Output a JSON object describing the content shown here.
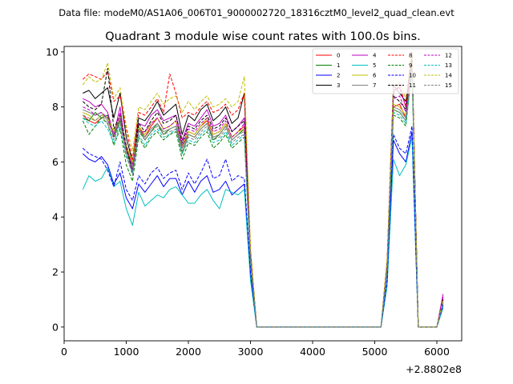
{
  "chart_data": {
    "type": "line",
    "suptitle": "Data file: modeM0/AS1A06_006T01_9000002720_18316cztM0_level2_quad_clean.evt",
    "title": "Quadrant 3 module wise count rates with 100.0s bins.",
    "xlabel": "",
    "ylabel": "",
    "x_offset_label": "+2.8802e8",
    "xlim": [
      0,
      6400
    ],
    "ylim": [
      -0.5,
      10.2
    ],
    "xticks": [
      0,
      1000,
      2000,
      3000,
      4000,
      5000,
      6000
    ],
    "yticks": [
      0,
      2,
      4,
      6,
      8,
      10
    ],
    "legend_position": "top-right",
    "x": [
      300,
      400,
      500,
      600,
      700,
      800,
      900,
      1000,
      1100,
      1200,
      1300,
      1400,
      1500,
      1600,
      1700,
      1800,
      1900,
      2000,
      2100,
      2200,
      2300,
      2400,
      2500,
      2600,
      2700,
      2800,
      2900,
      3000,
      3100,
      3200,
      3300,
      3400,
      3500,
      3600,
      3700,
      3800,
      3900,
      4000,
      4100,
      4200,
      4300,
      4400,
      4500,
      4600,
      4700,
      4800,
      4900,
      5000,
      5100,
      5200,
      5300,
      5400,
      5500,
      5600,
      5700,
      5800,
      5900,
      6000,
      6100
    ],
    "series": [
      {
        "name": "0",
        "color": "#ff0000",
        "dash": "solid",
        "values": [
          7.7,
          7.5,
          7.4,
          7.6,
          7.7,
          7.0,
          7.6,
          6.5,
          5.9,
          7.3,
          6.9,
          7.3,
          7.6,
          7.2,
          7.3,
          7.5,
          6.5,
          7.1,
          7.0,
          7.3,
          7.5,
          7.0,
          7.1,
          7.4,
          6.9,
          7.1,
          7.3,
          2.5,
          0.0,
          0.0,
          0.0,
          0.0,
          0.0,
          0.0,
          0.0,
          0.0,
          0.0,
          0.0,
          0.0,
          0.0,
          0.0,
          0.0,
          0.0,
          0.0,
          0.0,
          0.0,
          0.0,
          0.0,
          0.0,
          2.2,
          8.0,
          8.1,
          7.6,
          9.9,
          0.0,
          0.0,
          0.0,
          0.0,
          1.1
        ]
      },
      {
        "name": "1",
        "color": "#008000",
        "dash": "solid",
        "values": [
          7.6,
          7.5,
          7.8,
          7.6,
          7.7,
          6.9,
          7.5,
          6.4,
          5.7,
          7.2,
          6.8,
          7.1,
          7.4,
          7.0,
          7.2,
          7.3,
          6.3,
          7.0,
          6.9,
          7.2,
          7.4,
          6.8,
          7.0,
          7.3,
          6.8,
          7.0,
          7.2,
          2.4,
          0.0,
          0.0,
          0.0,
          0.0,
          0.0,
          0.0,
          0.0,
          0.0,
          0.0,
          0.0,
          0.0,
          0.0,
          0.0,
          0.0,
          0.0,
          0.0,
          0.0,
          0.0,
          0.0,
          0.0,
          0.0,
          2.1,
          7.9,
          7.8,
          7.5,
          9.7,
          0.0,
          0.0,
          0.0,
          0.0,
          0.9
        ]
      },
      {
        "name": "2",
        "color": "#0000ff",
        "dash": "solid",
        "values": [
          6.3,
          6.1,
          6.0,
          6.2,
          5.9,
          5.2,
          5.6,
          4.7,
          4.3,
          5.2,
          4.9,
          5.2,
          5.5,
          5.1,
          5.4,
          5.4,
          4.8,
          5.3,
          4.9,
          5.3,
          5.5,
          4.9,
          5.0,
          5.3,
          4.8,
          5.0,
          5.2,
          1.9,
          0.0,
          0.0,
          0.0,
          0.0,
          0.0,
          0.0,
          0.0,
          0.0,
          0.0,
          0.0,
          0.0,
          0.0,
          0.0,
          0.0,
          0.0,
          0.0,
          0.0,
          0.0,
          0.0,
          0.0,
          0.0,
          1.6,
          6.8,
          6.3,
          6.0,
          7.1,
          0.0,
          0.0,
          0.0,
          0.0,
          0.8
        ]
      },
      {
        "name": "3",
        "color": "#000000",
        "dash": "solid",
        "values": [
          8.5,
          8.6,
          8.3,
          8.5,
          8.7,
          7.6,
          8.5,
          6.9,
          6.0,
          7.6,
          7.5,
          7.8,
          8.2,
          7.7,
          7.9,
          8.1,
          7.0,
          7.7,
          7.5,
          7.9,
          8.1,
          7.5,
          7.7,
          8.0,
          7.4,
          7.6,
          8.5,
          2.7,
          0.0,
          0.0,
          0.0,
          0.0,
          0.0,
          0.0,
          0.0,
          0.0,
          0.0,
          0.0,
          0.0,
          0.0,
          0.0,
          0.0,
          0.0,
          0.0,
          0.0,
          0.0,
          0.0,
          0.0,
          0.0,
          2.4,
          8.8,
          8.5,
          8.2,
          10.0,
          0.0,
          0.0,
          0.0,
          0.0,
          1.0
        ]
      },
      {
        "name": "4",
        "color": "#bf00bf",
        "dash": "solid",
        "values": [
          8.3,
          8.2,
          8.0,
          8.1,
          7.8,
          7.0,
          8.0,
          6.4,
          5.9,
          7.4,
          7.3,
          7.7,
          7.9,
          7.5,
          7.6,
          7.7,
          6.8,
          7.4,
          7.3,
          7.6,
          7.9,
          7.3,
          7.4,
          7.7,
          7.1,
          7.3,
          7.6,
          2.6,
          0.0,
          0.0,
          0.0,
          0.0,
          0.0,
          0.0,
          0.0,
          0.0,
          0.0,
          0.0,
          0.0,
          0.0,
          0.0,
          0.0,
          0.0,
          0.0,
          0.0,
          0.0,
          0.0,
          0.0,
          0.0,
          2.3,
          8.6,
          8.7,
          8.0,
          9.8,
          0.0,
          0.0,
          0.0,
          0.0,
          1.2
        ]
      },
      {
        "name": "5",
        "color": "#00bfbf",
        "dash": "solid",
        "values": [
          5.0,
          5.5,
          5.3,
          5.4,
          5.8,
          5.1,
          5.3,
          4.3,
          3.7,
          4.9,
          4.4,
          4.6,
          4.8,
          4.7,
          5.0,
          5.1,
          4.8,
          4.5,
          4.5,
          4.8,
          5.0,
          4.6,
          4.3,
          5.0,
          4.9,
          4.8,
          5.0,
          1.7,
          0.0,
          0.0,
          0.0,
          0.0,
          0.0,
          0.0,
          0.0,
          0.0,
          0.0,
          0.0,
          0.0,
          0.0,
          0.0,
          0.0,
          0.0,
          0.0,
          0.0,
          0.0,
          0.0,
          0.0,
          0.0,
          1.5,
          6.1,
          5.5,
          5.9,
          6.9,
          0.0,
          0.0,
          0.0,
          0.0,
          0.7
        ]
      },
      {
        "name": "6",
        "color": "#bfbf00",
        "dash": "solid",
        "values": [
          7.8,
          7.7,
          7.5,
          7.7,
          7.6,
          7.1,
          7.7,
          6.6,
          6.0,
          7.3,
          7.0,
          7.4,
          7.6,
          7.2,
          7.3,
          7.5,
          6.6,
          7.1,
          7.0,
          7.3,
          7.6,
          7.0,
          7.1,
          7.4,
          6.9,
          7.1,
          7.2,
          2.5,
          0.0,
          0.0,
          0.0,
          0.0,
          0.0,
          0.0,
          0.0,
          0.0,
          0.0,
          0.0,
          0.0,
          0.0,
          0.0,
          0.0,
          0.0,
          0.0,
          0.0,
          0.0,
          0.0,
          0.0,
          0.0,
          2.2,
          8.1,
          8.0,
          7.7,
          9.6,
          0.0,
          0.0,
          0.0,
          0.0,
          1.0
        ]
      },
      {
        "name": "7",
        "color": "#808080",
        "dash": "solid",
        "values": [
          7.9,
          7.8,
          7.7,
          7.8,
          7.5,
          7.0,
          7.6,
          6.4,
          5.8,
          7.2,
          6.9,
          7.2,
          7.4,
          7.1,
          7.2,
          7.3,
          6.5,
          7.0,
          6.9,
          7.2,
          7.4,
          6.9,
          7.0,
          7.3,
          6.8,
          7.0,
          7.1,
          2.5,
          0.0,
          0.0,
          0.0,
          0.0,
          0.0,
          0.0,
          0.0,
          0.0,
          0.0,
          0.0,
          0.0,
          0.0,
          0.0,
          0.0,
          0.0,
          0.0,
          0.0,
          0.0,
          0.0,
          0.0,
          0.0,
          2.2,
          8.0,
          7.9,
          7.6,
          9.5,
          0.0,
          0.0,
          0.0,
          0.0,
          0.9
        ]
      },
      {
        "name": "8",
        "color": "#ff0000",
        "dash": "dashed",
        "values": [
          9.0,
          9.2,
          9.1,
          9.0,
          9.3,
          8.2,
          8.4,
          7.2,
          6.1,
          7.8,
          7.7,
          8.0,
          8.3,
          7.8,
          9.2,
          8.5,
          7.6,
          7.8,
          7.7,
          8.0,
          8.2,
          7.8,
          7.9,
          8.1,
          7.7,
          7.9,
          8.5,
          2.8,
          0.0,
          0.0,
          0.0,
          0.0,
          0.0,
          0.0,
          0.0,
          0.0,
          0.0,
          0.0,
          0.0,
          0.0,
          0.0,
          0.0,
          0.0,
          0.0,
          0.0,
          0.0,
          0.0,
          0.0,
          0.0,
          2.4,
          8.5,
          8.8,
          8.0,
          9.9,
          0.0,
          0.0,
          0.0,
          0.0,
          1.0
        ]
      },
      {
        "name": "9",
        "color": "#008000",
        "dash": "dashed",
        "values": [
          7.5,
          7.0,
          7.3,
          7.6,
          7.4,
          6.6,
          7.2,
          5.9,
          5.3,
          6.9,
          6.5,
          6.9,
          7.1,
          6.8,
          7.0,
          7.1,
          6.1,
          6.7,
          6.6,
          6.9,
          7.1,
          6.5,
          6.7,
          7.0,
          6.5,
          6.7,
          6.9,
          2.3,
          0.0,
          0.0,
          0.0,
          0.0,
          0.0,
          0.0,
          0.0,
          0.0,
          0.0,
          0.0,
          0.0,
          0.0,
          0.0,
          0.0,
          0.0,
          0.0,
          0.0,
          0.0,
          0.0,
          0.0,
          0.0,
          2.0,
          7.7,
          7.6,
          7.3,
          9.4,
          0.0,
          0.0,
          0.0,
          0.0,
          0.9
        ]
      },
      {
        "name": "10",
        "color": "#0000ff",
        "dash": "dashed",
        "values": [
          6.5,
          6.3,
          6.2,
          6.1,
          5.7,
          5.1,
          6.0,
          5.0,
          4.6,
          5.5,
          5.2,
          5.6,
          5.8,
          5.4,
          5.6,
          5.7,
          5.0,
          5.6,
          5.2,
          5.6,
          6.1,
          5.4,
          5.5,
          6.1,
          5.3,
          5.5,
          5.4,
          2.0,
          0.0,
          0.0,
          0.0,
          0.0,
          0.0,
          0.0,
          0.0,
          0.0,
          0.0,
          0.0,
          0.0,
          0.0,
          0.0,
          0.0,
          0.0,
          0.0,
          0.0,
          0.0,
          0.0,
          0.0,
          0.0,
          1.7,
          7.0,
          6.5,
          6.3,
          7.3,
          0.0,
          0.0,
          0.0,
          0.0,
          0.8
        ]
      },
      {
        "name": "11",
        "color": "#000000",
        "dash": "dashed",
        "values": [
          8.2,
          8.0,
          7.9,
          8.1,
          9.4,
          7.2,
          7.7,
          6.6,
          5.6,
          7.4,
          7.1,
          7.5,
          7.8,
          7.4,
          7.5,
          7.7,
          6.7,
          7.3,
          7.2,
          7.5,
          7.7,
          7.2,
          7.3,
          7.6,
          7.1,
          7.3,
          7.5,
          2.6,
          0.0,
          0.0,
          0.0,
          0.0,
          0.0,
          0.0,
          0.0,
          0.0,
          0.0,
          0.0,
          0.0,
          0.0,
          0.0,
          0.0,
          0.0,
          0.0,
          0.0,
          0.0,
          0.0,
          0.0,
          0.0,
          2.3,
          8.4,
          8.2,
          7.9,
          9.7,
          0.0,
          0.0,
          0.0,
          0.0,
          1.0
        ]
      },
      {
        "name": "12",
        "color": "#bf00bf",
        "dash": "dashed",
        "values": [
          8.0,
          7.9,
          7.7,
          7.8,
          7.6,
          6.9,
          7.8,
          6.2,
          5.7,
          7.1,
          7.1,
          7.4,
          7.6,
          7.2,
          7.3,
          7.5,
          6.6,
          7.2,
          7.1,
          7.4,
          7.6,
          7.1,
          7.2,
          7.5,
          6.9,
          7.1,
          7.4,
          2.5,
          0.0,
          0.0,
          0.0,
          0.0,
          0.0,
          0.0,
          0.0,
          0.0,
          0.0,
          0.0,
          0.0,
          0.0,
          0.0,
          0.0,
          0.0,
          0.0,
          0.0,
          0.0,
          0.0,
          0.0,
          0.0,
          2.2,
          8.3,
          8.4,
          7.8,
          9.6,
          0.0,
          0.0,
          0.0,
          0.0,
          1.1
        ]
      },
      {
        "name": "13",
        "color": "#00bfbf",
        "dash": "dashed",
        "values": [
          7.6,
          7.4,
          7.3,
          7.5,
          7.2,
          6.7,
          7.3,
          6.2,
          5.6,
          7.0,
          6.6,
          7.0,
          7.2,
          6.9,
          7.0,
          7.2,
          6.3,
          6.8,
          6.7,
          7.0,
          7.2,
          6.7,
          6.8,
          7.1,
          6.6,
          6.8,
          7.0,
          2.4,
          0.0,
          0.0,
          0.0,
          0.0,
          0.0,
          0.0,
          0.0,
          0.0,
          0.0,
          0.0,
          0.0,
          0.0,
          0.0,
          0.0,
          0.0,
          0.0,
          0.0,
          0.0,
          0.0,
          0.0,
          0.0,
          2.1,
          7.8,
          7.7,
          7.4,
          9.3,
          0.0,
          0.0,
          0.0,
          0.0,
          0.9
        ]
      },
      {
        "name": "14",
        "color": "#bfbf00",
        "dash": "dashed",
        "values": [
          8.8,
          9.1,
          8.9,
          9.0,
          9.6,
          8.3,
          8.7,
          7.3,
          6.4,
          8.0,
          7.9,
          8.2,
          8.5,
          8.1,
          8.3,
          8.4,
          7.8,
          8.2,
          7.9,
          8.2,
          8.4,
          8.0,
          8.1,
          8.3,
          8.0,
          8.2,
          9.1,
          2.9,
          0.0,
          0.0,
          0.0,
          0.0,
          0.0,
          0.0,
          0.0,
          0.0,
          0.0,
          0.0,
          0.0,
          0.0,
          0.0,
          0.0,
          0.0,
          0.0,
          0.0,
          0.0,
          0.0,
          0.0,
          0.0,
          2.5,
          8.7,
          8.9,
          8.3,
          10.0,
          0.0,
          0.0,
          0.0,
          0.0,
          1.0
        ]
      },
      {
        "name": "15",
        "color": "#808080",
        "dash": "dashed",
        "values": [
          7.7,
          7.6,
          7.5,
          7.7,
          7.4,
          6.8,
          7.4,
          6.3,
          5.5,
          7.1,
          6.8,
          7.1,
          7.3,
          7.0,
          7.1,
          7.2,
          6.4,
          6.9,
          6.8,
          7.1,
          7.3,
          6.8,
          6.9,
          7.2,
          6.7,
          6.9,
          7.0,
          2.4,
          0.0,
          0.0,
          0.0,
          0.0,
          0.0,
          0.0,
          0.0,
          0.0,
          0.0,
          0.0,
          0.0,
          0.0,
          0.0,
          0.0,
          0.0,
          0.0,
          0.0,
          0.0,
          0.0,
          0.0,
          0.0,
          2.1,
          7.9,
          7.8,
          7.5,
          9.4,
          0.0,
          0.0,
          0.0,
          0.0,
          0.9
        ]
      }
    ]
  }
}
